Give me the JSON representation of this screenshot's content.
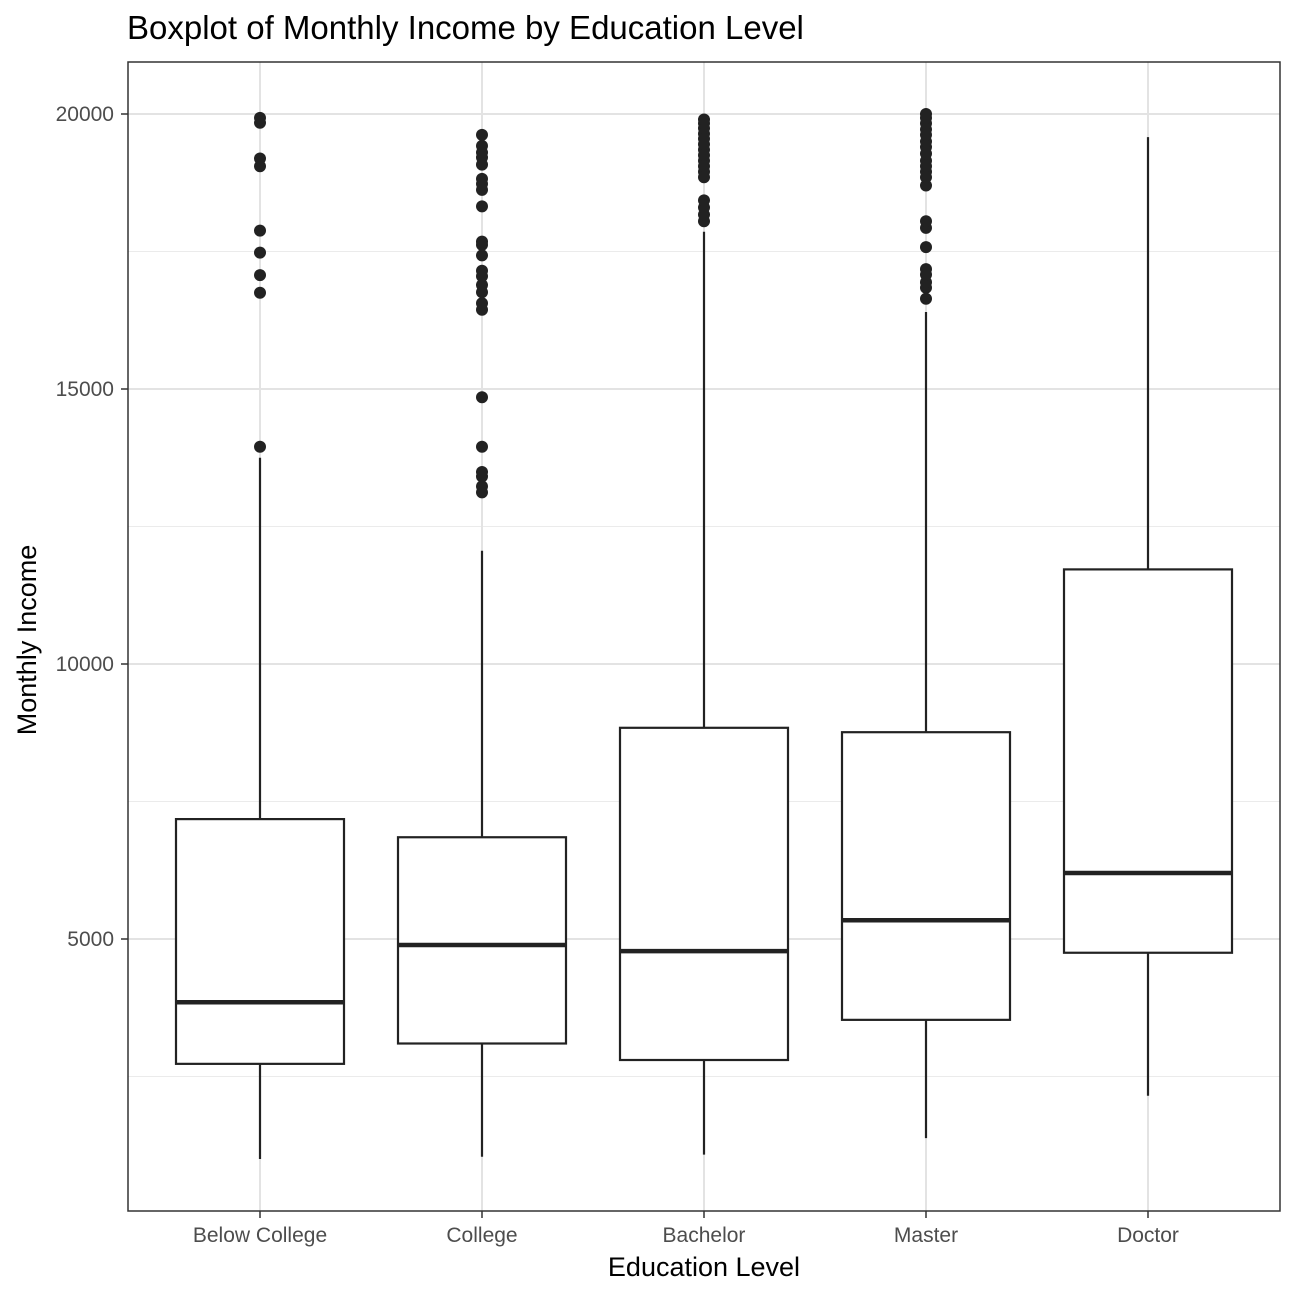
{
  "chart_data": {
    "type": "boxplot",
    "title": "Boxplot of Monthly Income by Education Level",
    "xlabel": "Education Level",
    "ylabel": "Monthly Income",
    "ylim": [
      0,
      21000
    ],
    "yticks": [
      5000,
      10000,
      15000,
      20000
    ],
    "ytick_labels": [
      "5000",
      "10000",
      "15000",
      "20000"
    ],
    "categories": [
      "Below College",
      "College",
      "Bachelor",
      "Master",
      "Doctor"
    ],
    "grid": true,
    "legend": "none",
    "boxes": [
      {
        "category": "Below College",
        "whisker_low": 1000,
        "q1": 2730,
        "median": 3850,
        "q3": 7180,
        "whisker_high": 13750,
        "outliers": [
          13950,
          16750,
          17070,
          17480,
          17880,
          19050,
          19190,
          19840,
          19930
        ]
      },
      {
        "category": "College",
        "whisker_low": 1040,
        "q1": 3100,
        "median": 4890,
        "q3": 6850,
        "whisker_high": 12060,
        "outliers": [
          13120,
          13230,
          13410,
          13490,
          13950,
          14850,
          16440,
          16560,
          16760,
          16890,
          17050,
          17150,
          17430,
          17620,
          17680,
          18320,
          18620,
          18730,
          18820,
          19080,
          19210,
          19300,
          19420,
          19620
        ]
      },
      {
        "category": "Bachelor",
        "whisker_low": 1080,
        "q1": 2800,
        "median": 4780,
        "q3": 8840,
        "whisker_high": 17860,
        "outliers": [
          18050,
          18170,
          18300,
          18430,
          18850,
          18950,
          19050,
          19150,
          19250,
          19350,
          19450,
          19550,
          19640,
          19740,
          19830,
          19900
        ]
      },
      {
        "category": "Master",
        "whisker_low": 1380,
        "q1": 3530,
        "median": 5340,
        "q3": 8760,
        "whisker_high": 16400,
        "outliers": [
          16640,
          16840,
          16940,
          17080,
          17180,
          17580,
          17930,
          18050,
          18700,
          18850,
          18950,
          19050,
          19150,
          19280,
          19400,
          19500,
          19620,
          19720,
          19830,
          19930,
          20000
        ]
      },
      {
        "category": "Doctor",
        "whisker_low": 2150,
        "q1": 4750,
        "median": 6200,
        "q3": 11720,
        "whisker_high": 19580,
        "outliers": []
      }
    ]
  }
}
